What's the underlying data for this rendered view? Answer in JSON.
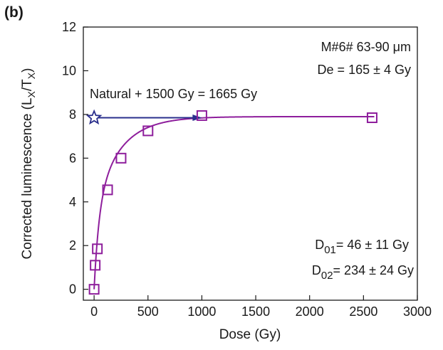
{
  "panel_label": "(b)",
  "chart_data": {
    "type": "scatter",
    "title": "",
    "xlabel": "Dose (Gy)",
    "ylabel_main": "Corrected luminescence (L",
    "ylabel_sub1": "X",
    "ylabel_mid": "/T",
    "ylabel_sub2": "X",
    "ylabel_end": ")",
    "xlim": [
      -100,
      3000
    ],
    "ylim": [
      -0.5,
      12
    ],
    "xticks": [
      0,
      500,
      1000,
      1500,
      2000,
      2500,
      3000
    ],
    "yticks": [
      0,
      2,
      4,
      6,
      8,
      10,
      12
    ],
    "grid": false,
    "series": [
      {
        "marker": "square",
        "color": "#8e1e9c",
        "x": [
          0,
          10,
          30,
          125,
          250,
          500,
          1000,
          2580
        ],
        "y": [
          0.0,
          1.1,
          1.85,
          4.55,
          6.0,
          7.25,
          7.95,
          7.85
        ]
      }
    ],
    "fit": {
      "color": "#8e1e9c",
      "model": "double saturating exponential",
      "D01": 46,
      "D02": 234
    },
    "natural": {
      "x": 0,
      "y": 7.85,
      "marker": "star",
      "color": "#2a2f8c"
    },
    "arrow": {
      "from": [
        0,
        7.85
      ],
      "to": [
        1000,
        7.85
      ],
      "color": "#2a2f8c"
    },
    "annotations": {
      "sample": "M#6# 63-90 μm",
      "de": "De = 165 ± 4 Gy",
      "natural_line": "Natural + 1500 Gy = 1665 Gy",
      "d01_label": "D",
      "d01_sub": "01",
      "d01_value": "= 46 ± 11 Gy",
      "d02_label": "D",
      "d02_sub": "02",
      "d02_value": "= 234 ± 24 Gy"
    }
  }
}
